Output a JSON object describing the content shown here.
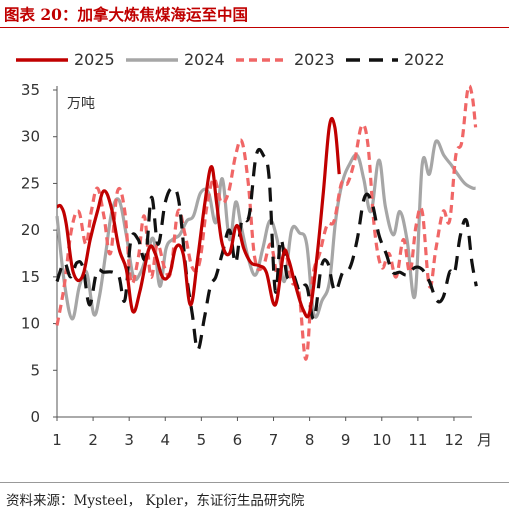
{
  "title": "图表 20：加拿大炼焦煤海运至中国",
  "source": "资料来源：Mysteel， Kpler，东证衍生品研究院",
  "colors": {
    "title": "#c00000",
    "s2025": "#c00000",
    "s2024": "#a6a6a6",
    "s2023": "#f06666",
    "s2022": "#111111"
  },
  "chart_data": {
    "type": "line",
    "unit_label": "万吨",
    "x_unit_label": "月",
    "ylim": [
      0,
      35
    ],
    "yticks": [
      0,
      5,
      10,
      15,
      20,
      25,
      30,
      35
    ],
    "xlim": [
      1,
      12.5
    ],
    "xticks": [
      1,
      2,
      3,
      4,
      5,
      6,
      7,
      8,
      9,
      10,
      11,
      12
    ],
    "xtick_labels": [
      "1",
      "2",
      "3",
      "4",
      "5",
      "6",
      "7",
      "8",
      "9",
      "10",
      "11",
      "12"
    ],
    "legend_position": "top",
    "grid": false,
    "series": [
      {
        "name": "2025",
        "style": "solid",
        "x": [
          1.0,
          1.12,
          1.25,
          1.45,
          1.7,
          1.92,
          2.12,
          2.3,
          2.5,
          2.72,
          2.92,
          3.1,
          3.3,
          3.55,
          3.72,
          3.92,
          4.12,
          4.3,
          4.5,
          4.7,
          4.9,
          5.1,
          5.28,
          5.42,
          5.58,
          5.78,
          5.98,
          6.18,
          6.38,
          6.6,
          6.8,
          7.05,
          7.28,
          7.42,
          7.6,
          7.82,
          8.0,
          8.2,
          8.38,
          8.55,
          8.7,
          8.82
        ],
        "y": [
          22.5,
          22.5,
          20.8,
          15.5,
          15.0,
          19.0,
          22.0,
          24.2,
          22.5,
          18.0,
          15.8,
          11.3,
          13.5,
          18.0,
          17.5,
          15.0,
          15.3,
          18.2,
          17.4,
          12.0,
          17.0,
          23.0,
          26.8,
          23.0,
          18.5,
          17.5,
          20.5,
          18.0,
          16.5,
          16.2,
          15.5,
          12.0,
          17.5,
          16.8,
          14.2,
          11.5,
          11.2,
          17.0,
          24.0,
          31.2,
          31.0,
          26.0
        ]
      },
      {
        "name": "2024",
        "style": "solid",
        "x": [
          1.0,
          1.2,
          1.42,
          1.62,
          1.82,
          2.02,
          2.18,
          2.35,
          2.52,
          2.72,
          2.92,
          3.12,
          3.32,
          3.5,
          3.68,
          3.85,
          4.02,
          4.2,
          4.4,
          4.6,
          4.78,
          4.98,
          5.2,
          5.4,
          5.58,
          5.78,
          5.95,
          6.1,
          6.3,
          6.5,
          6.7,
          6.9,
          7.1,
          7.3,
          7.5,
          7.72,
          7.92,
          8.12,
          8.35,
          8.55,
          8.72,
          8.9,
          9.1,
          9.32,
          9.5,
          9.7,
          9.92,
          10.1,
          10.32,
          10.5,
          10.7,
          10.92,
          11.12,
          11.32,
          11.5,
          11.72,
          11.92,
          12.1,
          12.3,
          12.52,
          12.6
        ],
        "y": [
          21.5,
          14.5,
          10.5,
          14.0,
          15.5,
          11.0,
          13.0,
          17.5,
          22.0,
          23.2,
          19.5,
          15.0,
          15.5,
          17.5,
          19.0,
          14.0,
          18.0,
          19.0,
          19.5,
          21.0,
          21.5,
          24.0,
          24.0,
          20.8,
          25.5,
          19.0,
          23.0,
          20.5,
          17.0,
          15.2,
          18.0,
          21.0,
          19.0,
          14.5,
          20.0,
          19.7,
          18.5,
          11.0,
          12.5,
          14.5,
          21.0,
          25.0,
          27.0,
          28.0,
          25.5,
          22.0,
          27.5,
          22.5,
          19.5,
          22.0,
          19.0,
          13.0,
          27.0,
          26.0,
          29.5,
          28.0,
          27.0,
          26.0,
          25.0,
          24.5,
          24.5
        ]
      },
      {
        "name": "2023",
        "style": "dashed",
        "x": [
          1.0,
          1.2,
          1.4,
          1.6,
          1.8,
          1.95,
          2.12,
          2.3,
          2.48,
          2.68,
          2.88,
          3.05,
          3.25,
          3.42,
          3.6,
          3.78,
          3.98,
          4.15,
          4.35,
          4.55,
          4.75,
          4.95,
          5.15,
          5.35,
          5.55,
          5.75,
          5.95,
          6.12,
          6.3,
          6.48,
          6.7,
          6.92,
          7.12,
          7.3,
          7.5,
          7.7,
          7.9,
          8.08,
          8.28,
          8.48,
          8.68,
          8.88,
          9.05,
          9.25,
          9.45,
          9.62,
          9.8,
          10.0,
          10.2,
          10.4,
          10.6,
          10.78,
          10.95,
          11.12,
          11.32,
          11.5,
          11.7,
          11.88,
          12.05,
          12.22,
          12.38,
          12.5,
          12.6
        ],
        "y": [
          9.8,
          14.0,
          20.0,
          22.0,
          18.5,
          22.0,
          24.5,
          21.5,
          17.5,
          24.2,
          22.0,
          14.5,
          17.0,
          21.5,
          15.0,
          18.5,
          16.0,
          15.5,
          22.0,
          19.5,
          16.0,
          16.5,
          22.5,
          25.5,
          23.0,
          24.0,
          28.0,
          29.5,
          25.0,
          17.0,
          16.0,
          18.5,
          15.0,
          18.0,
          14.5,
          13.5,
          6.2,
          14.8,
          17.5,
          20.5,
          21.0,
          25.0,
          25.0,
          27.5,
          31.2,
          29.0,
          20.0,
          16.0,
          17.5,
          15.0,
          19.0,
          15.5,
          20.5,
          22.0,
          14.0,
          18.0,
          22.0,
          21.0,
          28.0,
          29.5,
          35.0,
          34.5,
          31.0
        ]
      },
      {
        "name": "2022",
        "style": "dashed",
        "x": [
          1.0,
          1.2,
          1.38,
          1.55,
          1.72,
          1.9,
          2.1,
          2.3,
          2.55,
          2.72,
          2.88,
          3.05,
          3.25,
          3.45,
          3.62,
          3.8,
          4.0,
          4.2,
          4.38,
          4.58,
          4.75,
          4.9,
          5.08,
          5.25,
          5.4,
          5.58,
          5.78,
          5.95,
          6.12,
          6.32,
          6.52,
          6.72,
          6.88,
          7.05,
          7.2,
          7.38,
          7.55,
          7.72,
          7.92,
          8.12,
          8.32,
          8.5,
          8.7,
          8.92,
          9.12,
          9.32,
          9.52,
          9.72,
          9.92,
          10.12,
          10.3,
          10.5,
          10.7,
          10.92,
          11.12,
          11.32,
          11.52,
          11.7,
          11.88,
          12.02,
          12.18,
          12.35,
          12.5,
          12.62
        ],
        "y": [
          14.5,
          16.5,
          15.0,
          16.5,
          16.0,
          12.0,
          15.5,
          15.5,
          15.5,
          15.0,
          12.5,
          19.0,
          19.0,
          17.0,
          23.5,
          18.5,
          23.0,
          24.5,
          23.0,
          15.5,
          11.0,
          7.2,
          10.5,
          14.0,
          15.0,
          17.5,
          20.0,
          16.5,
          21.0,
          21.5,
          28.0,
          28.0,
          25.5,
          13.5,
          19.0,
          15.0,
          15.2,
          13.5,
          14.0,
          10.5,
          16.0,
          16.5,
          13.5,
          15.5,
          16.0,
          19.0,
          23.5,
          23.0,
          19.5,
          17.5,
          15.5,
          15.5,
          15.2,
          16.0,
          15.8,
          14.5,
          12.5,
          12.8,
          15.5,
          15.5,
          19.5,
          21.0,
          16.5,
          14.0
        ]
      }
    ]
  }
}
